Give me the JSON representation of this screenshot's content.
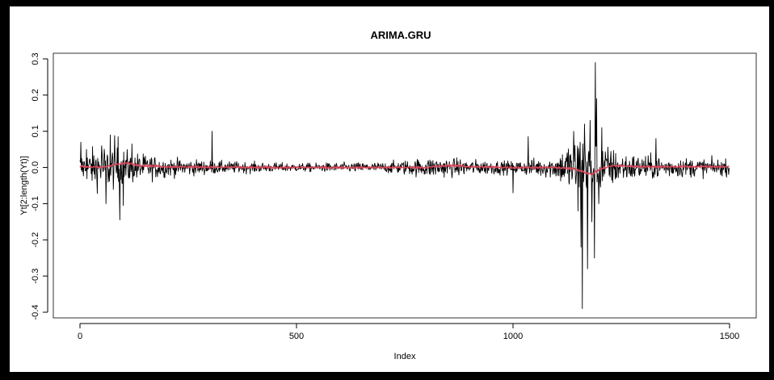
{
  "chart_data": {
    "type": "line",
    "title": "ARIMA.GRU",
    "xlabel": "Index",
    "ylabel": "Yt[2:length(Yt)]",
    "xlim": [
      0,
      1500
    ],
    "ylim": [
      -0.4,
      0.3
    ],
    "xticks": [
      0,
      500,
      1000,
      1500
    ],
    "yticks": [
      -0.4,
      -0.3,
      -0.2,
      -0.1,
      0.0,
      0.1,
      0.2,
      0.3
    ],
    "xtick_labels": [
      "0",
      "500",
      "1000",
      "1500"
    ],
    "ytick_labels": [
      "-0.4",
      "-0.3",
      "-0.2",
      "-0.1",
      "0.0",
      "0.1",
      "0.2",
      "0.3"
    ],
    "grid": false,
    "legend": "none",
    "n_points": 1500,
    "series": [
      {
        "role": "observed",
        "color": "#000000",
        "amplitude_profile": [
          [
            0,
            0.028
          ],
          [
            60,
            0.045
          ],
          [
            120,
            0.03
          ],
          [
            200,
            0.018
          ],
          [
            320,
            0.012
          ],
          [
            500,
            0.008
          ],
          [
            700,
            0.01
          ],
          [
            820,
            0.02
          ],
          [
            900,
            0.015
          ],
          [
            1000,
            0.012
          ],
          [
            1100,
            0.022
          ],
          [
            1150,
            0.07
          ],
          [
            1200,
            0.05
          ],
          [
            1250,
            0.028
          ],
          [
            1350,
            0.02
          ],
          [
            1500,
            0.015
          ]
        ],
        "spikes": [
          [
            2,
            0.07
          ],
          [
            15,
            0.05
          ],
          [
            50,
            0.06
          ],
          [
            60,
            -0.1
          ],
          [
            70,
            0.09
          ],
          [
            80,
            0.088
          ],
          [
            88,
            0.085
          ],
          [
            92,
            -0.145
          ],
          [
            100,
            -0.105
          ],
          [
            120,
            0.065
          ],
          [
            305,
            0.1
          ],
          [
            1000,
            -0.07
          ],
          [
            1035,
            0.085
          ],
          [
            1140,
            0.1
          ],
          [
            1150,
            -0.12
          ],
          [
            1157,
            -0.22
          ],
          [
            1160,
            -0.39
          ],
          [
            1165,
            0.12
          ],
          [
            1172,
            -0.28
          ],
          [
            1178,
            0.13
          ],
          [
            1182,
            -0.15
          ],
          [
            1188,
            -0.25
          ],
          [
            1190,
            0.29
          ],
          [
            1193,
            0.19
          ],
          [
            1198,
            -0.1
          ],
          [
            1205,
            0.11
          ],
          [
            1330,
            0.08
          ]
        ]
      },
      {
        "role": "fitted",
        "color": "#d9475a",
        "anchors": [
          [
            0,
            0.003
          ],
          [
            50,
            0.0
          ],
          [
            80,
            0.008
          ],
          [
            110,
            0.012
          ],
          [
            140,
            0.006
          ],
          [
            200,
            0.002
          ],
          [
            400,
            0.0
          ],
          [
            700,
            0.0
          ],
          [
            800,
            0.0
          ],
          [
            860,
            0.006
          ],
          [
            900,
            0.002
          ],
          [
            1000,
            0.0
          ],
          [
            1100,
            0.0
          ],
          [
            1140,
            -0.004
          ],
          [
            1160,
            -0.01
          ],
          [
            1180,
            -0.02
          ],
          [
            1200,
            -0.005
          ],
          [
            1230,
            0.005
          ],
          [
            1300,
            0.002
          ],
          [
            1500,
            0.002
          ]
        ]
      }
    ]
  }
}
